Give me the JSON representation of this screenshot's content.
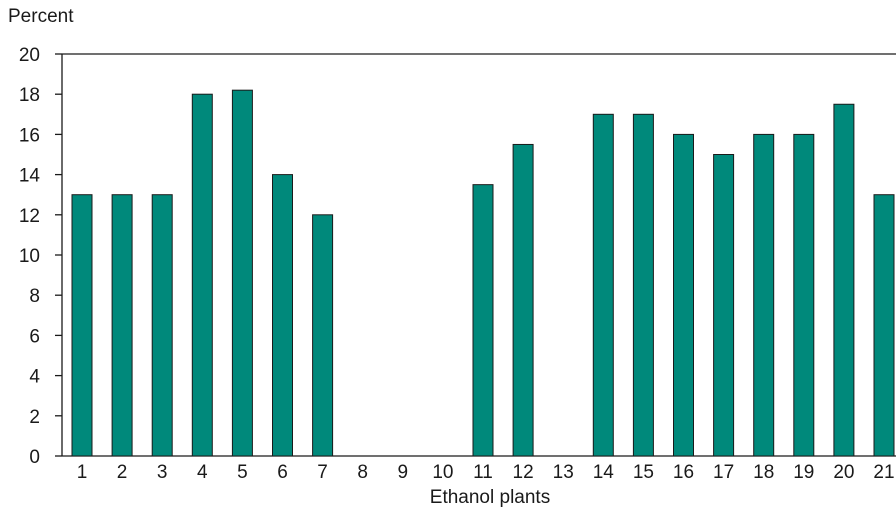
{
  "chart_data": {
    "type": "bar",
    "ylabel": "Percent",
    "xlabel": "Ethanol plants",
    "ylim": [
      0,
      20
    ],
    "yticks": [
      0,
      2,
      4,
      6,
      8,
      10,
      12,
      14,
      16,
      18,
      20
    ],
    "categories": [
      "1",
      "2",
      "3",
      "4",
      "5",
      "6",
      "7",
      "8",
      "9",
      "10",
      "11",
      "12",
      "13",
      "14",
      "15",
      "16",
      "17",
      "18",
      "19",
      "20",
      "21"
    ],
    "values": [
      13,
      13,
      13,
      18,
      18.2,
      14,
      12,
      null,
      null,
      null,
      13.5,
      15.5,
      null,
      17,
      17,
      16,
      15,
      16,
      16,
      17.5,
      13
    ],
    "bar_color": "#00897b",
    "grid": false,
    "legend": "none"
  }
}
